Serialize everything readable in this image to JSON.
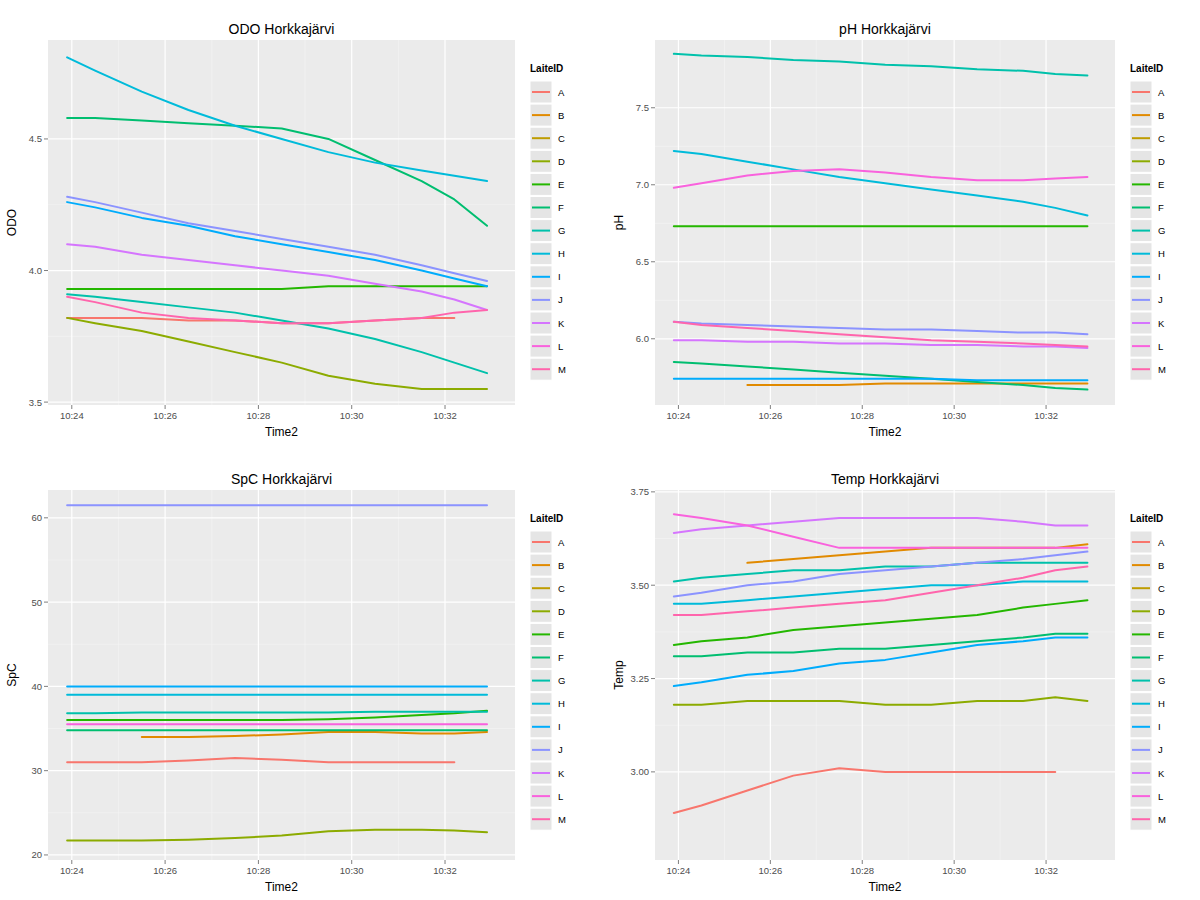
{
  "chart_data": [
    {
      "type": "line",
      "title": "ODO Horkkajärvi",
      "x_label": "Time2",
      "y_label": "ODO",
      "legend_title": "LaiteID",
      "legend": "right",
      "grid": true,
      "x": [
        623.9,
        624.5,
        625.5,
        626.5,
        627.5,
        628.5,
        629.5,
        630.5,
        631.5,
        632.2,
        632.9
      ],
      "xlim": [
        623.49,
        633.5
      ],
      "xticks": [
        {
          "value": 624,
          "label": "10:24"
        },
        {
          "value": 626,
          "label": "10:26"
        },
        {
          "value": 628,
          "label": "10:28"
        },
        {
          "value": 630,
          "label": "10:30"
        },
        {
          "value": 632,
          "label": "10:32"
        }
      ],
      "ylim": [
        3.489,
        4.876
      ],
      "yticks": [
        3.5,
        {
          "value": 4,
          "label": "4.0"
        },
        4.5
      ],
      "series": [
        {
          "name": "A",
          "color": "#F8766D",
          "values": [
            3.82,
            3.82,
            3.82,
            3.81,
            3.81,
            3.8,
            3.8,
            3.81,
            3.82,
            3.82,
            null
          ]
        },
        {
          "name": "B",
          "color": "#E18A00",
          "values": [
            null,
            null,
            null,
            null,
            null,
            null,
            null,
            null,
            null,
            null,
            null
          ]
        },
        {
          "name": "C",
          "color": "#BE9C00",
          "values": [
            null,
            null,
            null,
            null,
            null,
            null,
            null,
            null,
            null,
            null,
            null
          ]
        },
        {
          "name": "D",
          "color": "#8CAB00",
          "values": [
            3.82,
            3.8,
            3.77,
            3.73,
            3.69,
            3.65,
            3.6,
            3.57,
            3.55,
            3.55,
            3.55
          ]
        },
        {
          "name": "E",
          "color": "#24B700",
          "values": [
            3.93,
            3.93,
            3.93,
            3.93,
            3.93,
            3.93,
            3.94,
            3.94,
            3.94,
            3.94,
            3.94
          ]
        },
        {
          "name": "F",
          "color": "#00BE70",
          "values": [
            4.58,
            4.58,
            4.57,
            4.56,
            4.55,
            4.54,
            4.5,
            4.42,
            4.34,
            4.27,
            4.17
          ]
        },
        {
          "name": "G",
          "color": "#00C1AB",
          "values": [
            3.91,
            3.9,
            3.88,
            3.86,
            3.84,
            3.81,
            3.78,
            3.74,
            3.69,
            3.65,
            3.61
          ]
        },
        {
          "name": "H",
          "color": "#00BBDA",
          "values": [
            4.81,
            4.76,
            4.68,
            4.61,
            4.55,
            4.5,
            4.45,
            4.41,
            4.38,
            4.36,
            4.34
          ]
        },
        {
          "name": "I",
          "color": "#00ACFC",
          "values": [
            4.26,
            4.24,
            4.2,
            4.17,
            4.13,
            4.1,
            4.07,
            4.04,
            4.0,
            3.97,
            3.94
          ]
        },
        {
          "name": "J",
          "color": "#8B93FF",
          "values": [
            4.28,
            4.26,
            4.22,
            4.18,
            4.15,
            4.12,
            4.09,
            4.06,
            4.02,
            3.99,
            3.96
          ]
        },
        {
          "name": "K",
          "color": "#D575FE",
          "values": [
            4.1,
            4.09,
            4.06,
            4.04,
            4.02,
            4.0,
            3.98,
            3.95,
            3.92,
            3.89,
            3.85
          ]
        },
        {
          "name": "L",
          "color": "#F962DD",
          "values": [
            null,
            null,
            null,
            null,
            null,
            null,
            null,
            null,
            null,
            null,
            null
          ]
        },
        {
          "name": "M",
          "color": "#FF65AC",
          "values": [
            3.9,
            3.88,
            3.84,
            3.82,
            3.81,
            3.8,
            3.8,
            3.81,
            3.82,
            3.84,
            3.85
          ]
        }
      ]
    },
    {
      "type": "line",
      "title": "pH Horkkajärvi",
      "x_label": "Time2",
      "y_label": "pH",
      "legend_title": "LaiteID",
      "legend": "right",
      "grid": true,
      "x": [
        623.9,
        624.5,
        625.5,
        626.5,
        627.5,
        628.5,
        629.5,
        630.5,
        631.5,
        632.2,
        632.9
      ],
      "xlim": [
        623.49,
        633.5
      ],
      "xticks": [
        {
          "value": 624,
          "label": "10:24"
        },
        {
          "value": 626,
          "label": "10:26"
        },
        {
          "value": 628,
          "label": "10:28"
        },
        {
          "value": 630,
          "label": "10:30"
        },
        {
          "value": 632,
          "label": "10:32"
        }
      ],
      "ylim": [
        5.57,
        7.94
      ],
      "yticks": [
        {
          "value": 6,
          "label": "6.0"
        },
        6.5,
        {
          "value": 7,
          "label": "7.0"
        },
        7.5
      ],
      "series": [
        {
          "name": "A",
          "color": "#F8766D",
          "values": [
            null,
            null,
            null,
            null,
            null,
            null,
            null,
            null,
            null,
            null,
            null
          ]
        },
        {
          "name": "B",
          "color": "#E18A00",
          "values": [
            null,
            null,
            5.7,
            5.7,
            5.7,
            5.71,
            5.71,
            5.71,
            5.71,
            5.71,
            5.71
          ]
        },
        {
          "name": "C",
          "color": "#BE9C00",
          "values": [
            null,
            null,
            null,
            null,
            null,
            null,
            null,
            null,
            null,
            null,
            null
          ]
        },
        {
          "name": "D",
          "color": "#8CAB00",
          "values": [
            null,
            null,
            null,
            null,
            null,
            null,
            null,
            null,
            null,
            null,
            null
          ]
        },
        {
          "name": "E",
          "color": "#24B700",
          "values": [
            6.73,
            6.73,
            6.73,
            6.73,
            6.73,
            6.73,
            6.73,
            6.73,
            6.73,
            6.73,
            6.73
          ]
        },
        {
          "name": "F",
          "color": "#00BE70",
          "values": [
            5.85,
            5.84,
            5.82,
            5.8,
            5.78,
            5.76,
            5.74,
            5.72,
            5.7,
            5.68,
            5.67
          ]
        },
        {
          "name": "G",
          "color": "#00C1AB",
          "values": [
            7.85,
            7.84,
            7.83,
            7.81,
            7.8,
            7.78,
            7.77,
            7.75,
            7.74,
            7.72,
            7.71
          ]
        },
        {
          "name": "H",
          "color": "#00BBDA",
          "values": [
            7.22,
            7.2,
            7.15,
            7.1,
            7.05,
            7.01,
            6.97,
            6.93,
            6.89,
            6.85,
            6.8
          ]
        },
        {
          "name": "I",
          "color": "#00ACFC",
          "values": [
            5.74,
            5.74,
            5.74,
            5.74,
            5.74,
            5.74,
            5.74,
            5.73,
            5.73,
            5.73,
            5.73
          ]
        },
        {
          "name": "J",
          "color": "#8B93FF",
          "values": [
            6.11,
            6.1,
            6.09,
            6.08,
            6.07,
            6.06,
            6.06,
            6.05,
            6.04,
            6.04,
            6.03
          ]
        },
        {
          "name": "K",
          "color": "#D575FE",
          "values": [
            5.99,
            5.99,
            5.98,
            5.98,
            5.97,
            5.97,
            5.96,
            5.96,
            5.95,
            5.95,
            5.94
          ]
        },
        {
          "name": "L",
          "color": "#F962DD",
          "values": [
            6.98,
            7.01,
            7.06,
            7.09,
            7.1,
            7.08,
            7.05,
            7.03,
            7.03,
            7.04,
            7.05
          ]
        },
        {
          "name": "M",
          "color": "#FF65AC",
          "values": [
            6.11,
            6.09,
            6.07,
            6.05,
            6.03,
            6.01,
            5.99,
            5.98,
            5.97,
            5.96,
            5.95
          ]
        }
      ]
    },
    {
      "type": "line",
      "title": "SpC Horkkajärvi",
      "x_label": "Time2",
      "y_label": "SpC",
      "legend_title": "LaiteID",
      "legend": "right",
      "grid": true,
      "x": [
        623.9,
        624.5,
        625.5,
        626.5,
        627.5,
        628.5,
        629.5,
        630.5,
        631.5,
        632.2,
        632.9
      ],
      "xlim": [
        623.49,
        633.5
      ],
      "xticks": [
        {
          "value": 624,
          "label": "10:24"
        },
        {
          "value": 626,
          "label": "10:26"
        },
        {
          "value": 628,
          "label": "10:28"
        },
        {
          "value": 630,
          "label": "10:30"
        },
        {
          "value": 632,
          "label": "10:32"
        }
      ],
      "ylim": [
        19.4,
        63.3
      ],
      "yticks": [
        20,
        30,
        40,
        50,
        60
      ],
      "series": [
        {
          "name": "A",
          "color": "#F8766D",
          "values": [
            31,
            31,
            31,
            31.2,
            31.5,
            31.3,
            31,
            31,
            31,
            31,
            null
          ]
        },
        {
          "name": "B",
          "color": "#E18A00",
          "values": [
            null,
            null,
            34,
            34,
            34.1,
            34.3,
            34.6,
            34.6,
            34.4,
            34.4,
            34.6
          ]
        },
        {
          "name": "C",
          "color": "#BE9C00",
          "values": [
            null,
            null,
            null,
            null,
            null,
            null,
            null,
            null,
            null,
            null,
            null
          ]
        },
        {
          "name": "D",
          "color": "#8CAB00",
          "values": [
            21.7,
            21.7,
            21.7,
            21.8,
            22,
            22.3,
            22.8,
            23,
            23,
            22.9,
            22.7
          ]
        },
        {
          "name": "E",
          "color": "#24B700",
          "values": [
            36,
            36,
            36,
            36,
            36,
            36,
            36.1,
            36.3,
            36.6,
            36.8,
            37.1
          ]
        },
        {
          "name": "F",
          "color": "#00BE70",
          "values": [
            34.8,
            34.8,
            34.8,
            34.8,
            34.8,
            34.8,
            34.8,
            34.8,
            34.8,
            34.8,
            34.8
          ]
        },
        {
          "name": "G",
          "color": "#00C1AB",
          "values": [
            36.8,
            36.8,
            36.9,
            36.9,
            36.9,
            36.9,
            36.9,
            37,
            37,
            37,
            37
          ]
        },
        {
          "name": "H",
          "color": "#00BBDA",
          "values": [
            39,
            39,
            39,
            39,
            39,
            39,
            39,
            39,
            39,
            39,
            39
          ]
        },
        {
          "name": "I",
          "color": "#00ACFC",
          "values": [
            40,
            40,
            40,
            40,
            40,
            40,
            40,
            40,
            40,
            40,
            40
          ]
        },
        {
          "name": "J",
          "color": "#8B93FF",
          "values": [
            61.5,
            61.5,
            61.5,
            61.5,
            61.5,
            61.5,
            61.5,
            61.5,
            61.5,
            61.5,
            61.5
          ]
        },
        {
          "name": "K",
          "color": "#D575FE",
          "values": [
            null,
            null,
            null,
            null,
            null,
            null,
            null,
            null,
            null,
            null,
            null
          ]
        },
        {
          "name": "L",
          "color": "#F962DD",
          "values": [
            35.5,
            35.5,
            35.5,
            35.5,
            35.5,
            35.5,
            35.5,
            35.5,
            35.5,
            35.5,
            35.5
          ]
        },
        {
          "name": "M",
          "color": "#FF65AC",
          "values": [
            null,
            null,
            null,
            null,
            null,
            null,
            null,
            null,
            null,
            null,
            null
          ]
        }
      ]
    },
    {
      "type": "line",
      "title": "Temp Horkkajärvi",
      "x_label": "Time2",
      "y_label": "Temp",
      "legend_title": "LaiteID",
      "legend": "right",
      "grid": true,
      "x": [
        623.9,
        624.5,
        625.5,
        626.5,
        627.5,
        628.5,
        629.5,
        630.5,
        631.5,
        632.2,
        632.9
      ],
      "xlim": [
        623.49,
        633.5
      ],
      "xticks": [
        {
          "value": 624,
          "label": "10:24"
        },
        {
          "value": 626,
          "label": "10:26"
        },
        {
          "value": 628,
          "label": "10:28"
        },
        {
          "value": 630,
          "label": "10:30"
        },
        {
          "value": 632,
          "label": "10:32"
        }
      ],
      "ylim": [
        2.764,
        3.755
      ],
      "yticks": [
        {
          "value": 3,
          "label": "3.00"
        },
        3.25,
        {
          "value": 3.5,
          "label": "3.50"
        },
        3.75
      ],
      "series": [
        {
          "name": "A",
          "color": "#F8766D",
          "values": [
            2.89,
            2.91,
            2.95,
            2.99,
            3.01,
            3.0,
            3.0,
            3.0,
            3.0,
            3.0,
            null
          ]
        },
        {
          "name": "B",
          "color": "#E18A00",
          "values": [
            null,
            null,
            3.56,
            3.57,
            3.58,
            3.59,
            3.6,
            3.6,
            3.6,
            3.6,
            3.61
          ]
        },
        {
          "name": "C",
          "color": "#BE9C00",
          "values": [
            null,
            null,
            null,
            null,
            null,
            null,
            null,
            null,
            null,
            null,
            null
          ]
        },
        {
          "name": "D",
          "color": "#8CAB00",
          "values": [
            3.18,
            3.18,
            3.19,
            3.19,
            3.19,
            3.18,
            3.18,
            3.19,
            3.19,
            3.2,
            3.19
          ]
        },
        {
          "name": "E",
          "color": "#24B700",
          "values": [
            3.34,
            3.35,
            3.36,
            3.38,
            3.39,
            3.4,
            3.41,
            3.42,
            3.44,
            3.45,
            3.46
          ]
        },
        {
          "name": "F",
          "color": "#00BE70",
          "values": [
            3.31,
            3.31,
            3.32,
            3.32,
            3.33,
            3.33,
            3.34,
            3.35,
            3.36,
            3.37,
            3.37
          ]
        },
        {
          "name": "G",
          "color": "#00C1AB",
          "values": [
            3.51,
            3.52,
            3.53,
            3.54,
            3.54,
            3.55,
            3.55,
            3.56,
            3.56,
            3.56,
            3.56
          ]
        },
        {
          "name": "H",
          "color": "#00BBDA",
          "values": [
            3.45,
            3.45,
            3.46,
            3.47,
            3.48,
            3.49,
            3.5,
            3.5,
            3.51,
            3.51,
            3.51
          ]
        },
        {
          "name": "I",
          "color": "#00ACFC",
          "values": [
            3.23,
            3.24,
            3.26,
            3.27,
            3.29,
            3.3,
            3.32,
            3.34,
            3.35,
            3.36,
            3.36
          ]
        },
        {
          "name": "J",
          "color": "#8B93FF",
          "values": [
            3.47,
            3.48,
            3.5,
            3.51,
            3.53,
            3.54,
            3.55,
            3.56,
            3.57,
            3.58,
            3.59
          ]
        },
        {
          "name": "K",
          "color": "#D575FE",
          "values": [
            3.64,
            3.65,
            3.66,
            3.67,
            3.68,
            3.68,
            3.68,
            3.68,
            3.67,
            3.66,
            3.66
          ]
        },
        {
          "name": "L",
          "color": "#F962DD",
          "values": [
            3.69,
            3.68,
            3.66,
            3.63,
            3.6,
            3.6,
            3.6,
            3.6,
            3.6,
            3.6,
            3.6
          ]
        },
        {
          "name": "M",
          "color": "#FF65AC",
          "values": [
            3.42,
            3.42,
            3.43,
            3.44,
            3.45,
            3.46,
            3.48,
            3.5,
            3.52,
            3.54,
            3.55
          ]
        }
      ]
    }
  ]
}
